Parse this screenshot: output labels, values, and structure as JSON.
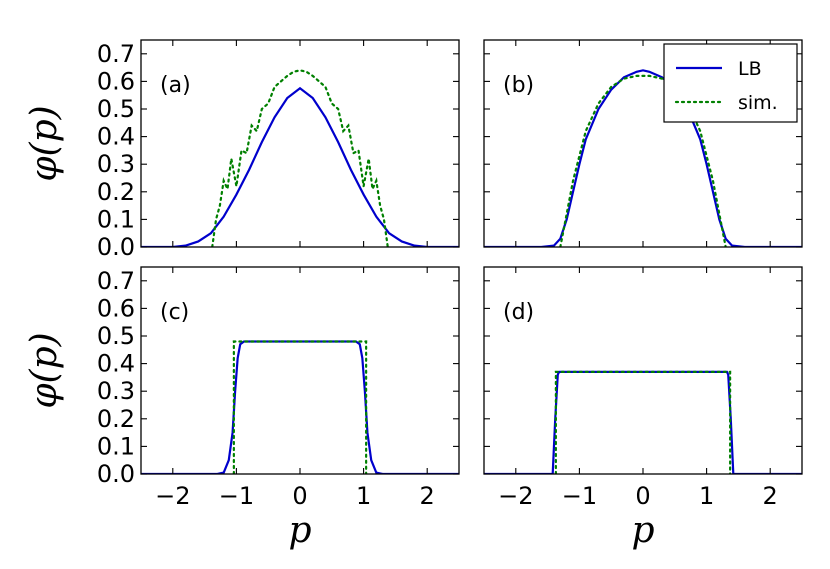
{
  "chart_data": {
    "type": "line",
    "layout": "2x2 grid",
    "shared_x": true,
    "shared_y": true,
    "xlabel": "p",
    "ylabel": "φ(p)",
    "xlim": [
      -2.5,
      2.5
    ],
    "ylim": [
      0,
      0.75
    ],
    "xticks": [
      "−2",
      "−1",
      "0",
      "1",
      "2"
    ],
    "yticks": [
      "0.0",
      "0.1",
      "0.2",
      "0.3",
      "0.4",
      "0.5",
      "0.6",
      "0.7"
    ],
    "legend": {
      "placement": "top-right of panel (b)",
      "entries": [
        {
          "name": "LB",
          "style": "solid",
          "color": "#0000cc"
        },
        {
          "name": "sim.",
          "style": "dotted",
          "color": "#008000"
        }
      ]
    },
    "panels": [
      {
        "label": "(a)",
        "series": [
          {
            "name": "LB",
            "x": [
              -2.5,
              -2.0,
              -1.8,
              -1.6,
              -1.4,
              -1.2,
              -1.0,
              -0.8,
              -0.6,
              -0.4,
              -0.2,
              0.0,
              0.2,
              0.4,
              0.6,
              0.8,
              1.0,
              1.2,
              1.4,
              1.6,
              1.8,
              2.0,
              2.5
            ],
            "y": [
              0.0,
              0.0,
              0.005,
              0.02,
              0.05,
              0.11,
              0.19,
              0.28,
              0.38,
              0.47,
              0.54,
              0.575,
              0.54,
              0.47,
              0.38,
              0.28,
              0.19,
              0.11,
              0.05,
              0.02,
              0.005,
              0.0,
              0.0
            ]
          },
          {
            "name": "sim.",
            "x": [
              -1.38,
              -1.32,
              -1.26,
              -1.2,
              -1.14,
              -1.08,
              -1.0,
              -0.92,
              -0.84,
              -0.76,
              -0.68,
              -0.6,
              -0.5,
              -0.4,
              -0.3,
              -0.2,
              -0.1,
              0.0,
              0.1,
              0.2,
              0.3,
              0.4,
              0.5,
              0.6,
              0.68,
              0.76,
              0.84,
              0.92,
              1.0,
              1.08,
              1.14,
              1.2,
              1.26,
              1.32,
              1.38
            ],
            "y": [
              0.0,
              0.1,
              0.15,
              0.24,
              0.21,
              0.32,
              0.22,
              0.35,
              0.34,
              0.44,
              0.42,
              0.5,
              0.52,
              0.58,
              0.6,
              0.62,
              0.635,
              0.64,
              0.635,
              0.62,
              0.6,
              0.58,
              0.52,
              0.5,
              0.42,
              0.44,
              0.34,
              0.35,
              0.22,
              0.32,
              0.21,
              0.24,
              0.15,
              0.1,
              0.0
            ]
          }
        ]
      },
      {
        "label": "(b)",
        "series": [
          {
            "name": "LB",
            "x": [
              -2.5,
              -1.6,
              -1.4,
              -1.3,
              -1.2,
              -1.1,
              -1.0,
              -0.9,
              -0.7,
              -0.5,
              -0.3,
              -0.1,
              0.0,
              0.1,
              0.3,
              0.5,
              0.7,
              0.9,
              1.0,
              1.1,
              1.2,
              1.3,
              1.4,
              1.6,
              2.5
            ],
            "y": [
              0.0,
              0.0,
              0.005,
              0.03,
              0.1,
              0.2,
              0.3,
              0.39,
              0.5,
              0.57,
              0.615,
              0.635,
              0.64,
              0.635,
              0.615,
              0.57,
              0.5,
              0.39,
              0.3,
              0.2,
              0.1,
              0.03,
              0.005,
              0.0,
              0.0
            ]
          },
          {
            "name": "sim.",
            "x": [
              -1.3,
              -1.2,
              -1.1,
              -1.0,
              -0.9,
              -0.7,
              -0.5,
              -0.3,
              -0.1,
              0.1,
              0.3,
              0.5,
              0.7,
              0.9,
              1.0,
              1.1,
              1.2,
              1.3
            ],
            "y": [
              0.0,
              0.12,
              0.24,
              0.33,
              0.42,
              0.52,
              0.58,
              0.61,
              0.62,
              0.62,
              0.61,
              0.58,
              0.52,
              0.42,
              0.33,
              0.24,
              0.12,
              0.0
            ]
          }
        ]
      },
      {
        "label": "(c)",
        "series": [
          {
            "name": "LB",
            "x": [
              -2.5,
              -1.3,
              -1.2,
              -1.12,
              -1.06,
              -1.02,
              -0.98,
              -0.94,
              -0.88,
              -0.8,
              0.8,
              0.88,
              0.94,
              0.98,
              1.02,
              1.06,
              1.12,
              1.2,
              1.3,
              2.5
            ],
            "y": [
              0.0,
              0.0,
              0.005,
              0.05,
              0.15,
              0.3,
              0.42,
              0.47,
              0.48,
              0.48,
              0.48,
              0.48,
              0.47,
              0.42,
              0.3,
              0.15,
              0.05,
              0.005,
              0.0,
              0.0
            ]
          },
          {
            "name": "sim.",
            "x": [
              -1.04,
              -1.04,
              1.04,
              1.04
            ],
            "y": [
              0.0,
              0.48,
              0.48,
              0.0
            ]
          }
        ]
      },
      {
        "label": "(d)",
        "series": [
          {
            "name": "LB",
            "x": [
              -2.5,
              -1.42,
              -1.38,
              -1.34,
              -1.32,
              1.32,
              1.34,
              1.38,
              1.42,
              2.5
            ],
            "y": [
              0.0,
              0.0,
              0.2,
              0.36,
              0.37,
              0.37,
              0.36,
              0.2,
              0.0,
              0.0
            ]
          },
          {
            "name": "sim.",
            "x": [
              -1.37,
              -1.37,
              1.37,
              1.37
            ],
            "y": [
              0.0,
              0.37,
              0.37,
              0.0
            ]
          }
        ]
      }
    ]
  }
}
